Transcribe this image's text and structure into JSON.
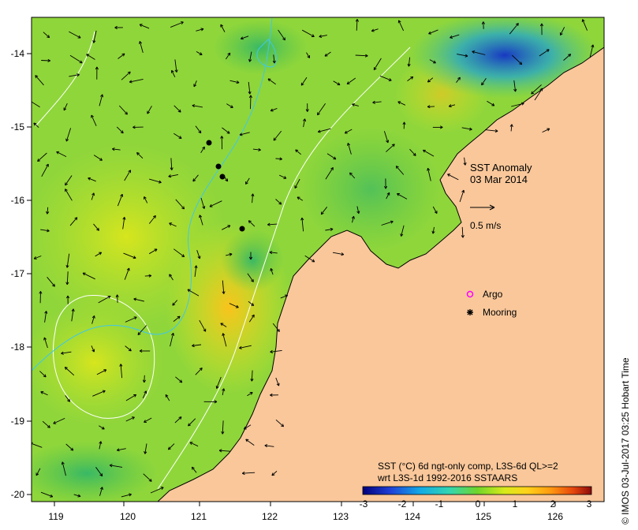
{
  "map": {
    "title": "SST Anomaly",
    "date": "03 Mar 2014",
    "scale_label": "0.5 m/s",
    "lon_ticks": [
      "119",
      "120",
      "121",
      "122",
      "123",
      "124",
      "125",
      "126"
    ],
    "lat_ticks": [
      "-14",
      "-15",
      "-16",
      "-17",
      "-18",
      "-19",
      "-20"
    ],
    "legend": {
      "argo_label": "Argo",
      "mooring_label": "Mooring"
    },
    "colorbar": {
      "line1": "SST (°C) 6d ngt-only comp, L3S-6d QL>=2",
      "line2": "wrt L3S-1d 1992-2016 SSTAARS",
      "ticks": [
        "-3",
        "-2",
        "-1",
        "0",
        "1",
        "2",
        "3"
      ]
    },
    "credit": "© IMOS 03-Jul-2017 03:25 Hobart Time",
    "colors": {
      "land": "#f9c79a",
      "ocean_base": "#8fd63b",
      "argo": "#ff00ff",
      "mooring": "#000000"
    }
  }
}
